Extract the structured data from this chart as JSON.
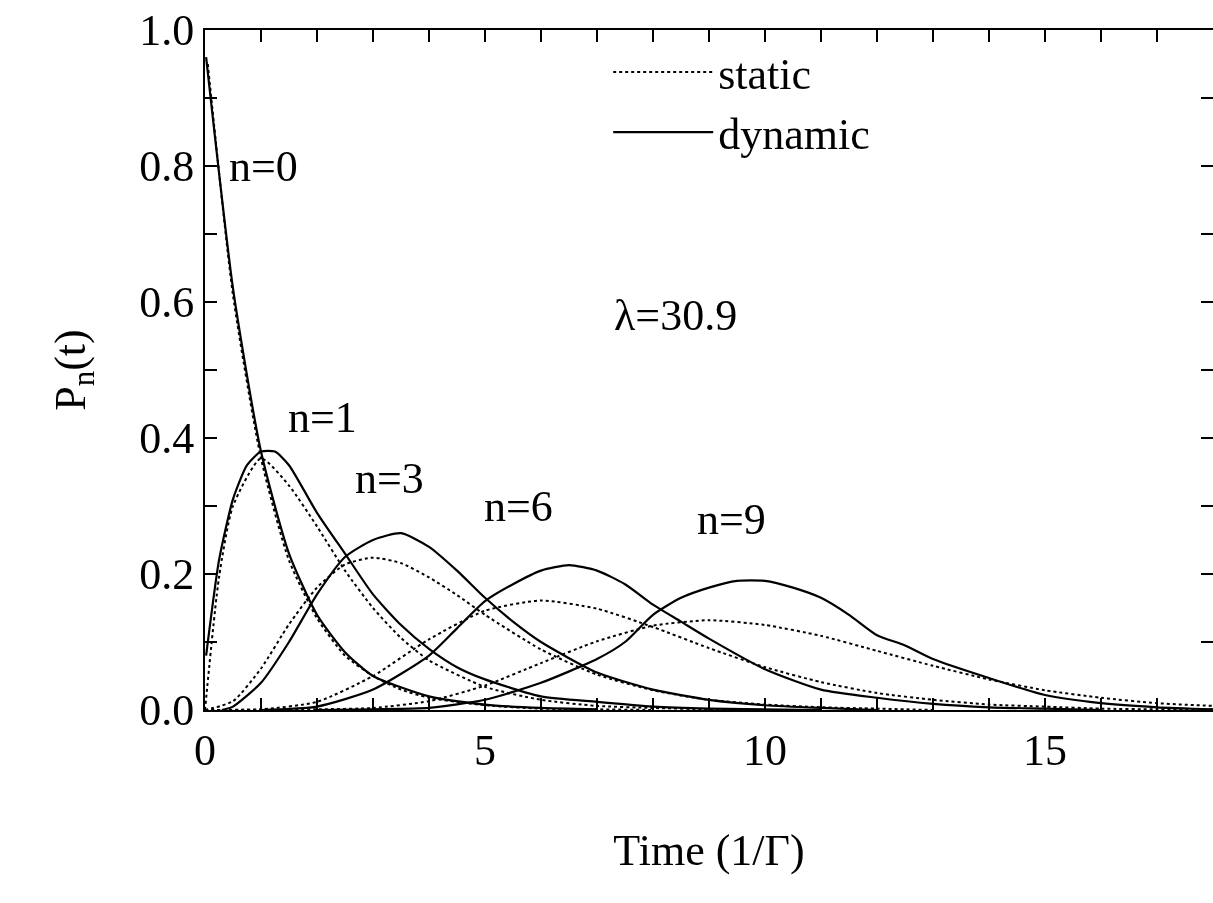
{
  "chart_data": {
    "type": "line",
    "xlabel": "Time (1/Γ)",
    "ylabel": "P$_{n}$(t)",
    "xlim": [
      0,
      18
    ],
    "ylim": [
      0,
      1
    ],
    "xticks": [
      0,
      {
        "value": 1,
        "label": null
      },
      {
        "value": 2,
        "label": null
      },
      {
        "value": 3,
        "label": null
      },
      {
        "value": 4,
        "label": null
      },
      5,
      {
        "value": 6,
        "label": null
      },
      {
        "value": 7,
        "label": null
      },
      {
        "value": 8,
        "label": null
      },
      {
        "value": 9,
        "label": null
      },
      10,
      {
        "value": 11,
        "label": null
      },
      {
        "value": 12,
        "label": null
      },
      {
        "value": 13,
        "label": null
      },
      {
        "value": 14,
        "label": null
      },
      15,
      {
        "value": 16,
        "label": null
      },
      {
        "value": 17,
        "label": null
      }
    ],
    "yticks": [
      {
        "value": 0,
        "label": "0.0"
      },
      {
        "value": 0.1,
        "label": null
      },
      0.2,
      {
        "value": 0.3,
        "label": null
      },
      0.4,
      {
        "value": 0.5,
        "label": null
      },
      0.6,
      {
        "value": 0.7,
        "label": null
      },
      0.8,
      {
        "value": 0.9,
        "label": null
      },
      {
        "value": 1,
        "label": "1.0"
      }
    ],
    "grid": false,
    "legend": "top",
    "marker": "none",
    "annotations": [
      "n=0",
      "n=1",
      "n=3",
      "n=6",
      "n=9",
      "λ=30.9"
    ],
    "series": [
      {
        "name": "static",
        "color": "#000000",
        "line_style": "dotted",
        "x": [
          0.05,
          0.5,
          1,
          1.5,
          2,
          2.5,
          3,
          3.5,
          4,
          5,
          6,
          7,
          8
        ],
        "values": [
          0.95,
          0.61,
          0.37,
          0.22,
          0.135,
          0.08,
          0.05,
          0.03,
          0.018,
          0.007,
          0.002,
          0.001,
          0
        ]
      },
      {
        "color": "#000000",
        "line_style": "dotted",
        "x": [
          0,
          0.25,
          0.5,
          1,
          1.5,
          2,
          2.5,
          3,
          3.5,
          4,
          5,
          6,
          7,
          8,
          9,
          10
        ],
        "values": [
          0,
          0.195,
          0.3,
          0.37,
          0.33,
          0.27,
          0.205,
          0.15,
          0.106,
          0.073,
          0.034,
          0.015,
          0.006,
          0.003,
          0.001,
          0
        ]
      },
      {
        "color": "#000000",
        "line_style": "dotted",
        "x": [
          0,
          0.5,
          1,
          1.5,
          2,
          2.5,
          3,
          3.5,
          4,
          4.5,
          5,
          6,
          7,
          8,
          9,
          10,
          11,
          12,
          13
        ],
        "values": [
          0,
          0.013,
          0.061,
          0.126,
          0.18,
          0.214,
          0.224,
          0.216,
          0.195,
          0.169,
          0.14,
          0.089,
          0.052,
          0.029,
          0.015,
          0.008,
          0.004,
          0.002,
          0
        ]
      },
      {
        "color": "#000000",
        "line_style": "dotted",
        "x": [
          0,
          1,
          2,
          3,
          4,
          5,
          6,
          7,
          8,
          9,
          10,
          11,
          12,
          13,
          14,
          15,
          16,
          17,
          18
        ],
        "values": [
          0,
          0.001,
          0.012,
          0.05,
          0.104,
          0.146,
          0.161,
          0.149,
          0.122,
          0.091,
          0.063,
          0.041,
          0.025,
          0.015,
          0.008,
          0.005,
          0.002,
          0.001,
          0.001
        ]
      },
      {
        "color": "#000000",
        "line_style": "dotted",
        "x": [
          0,
          2,
          3,
          4,
          5,
          6,
          7,
          8,
          9,
          10,
          11,
          12,
          13,
          14,
          15,
          16,
          17,
          18
        ],
        "values": [
          0,
          0.001,
          0.003,
          0.013,
          0.036,
          0.069,
          0.101,
          0.124,
          0.132,
          0.125,
          0.109,
          0.087,
          0.065,
          0.045,
          0.029,
          0.018,
          0.01,
          0.006
        ]
      },
      {
        "name": "dynamic",
        "color": "#000000",
        "line_style": "solid",
        "x": [
          0.02,
          0.5,
          1,
          1.5,
          2,
          2.5,
          3,
          4,
          5,
          6,
          7
        ],
        "values": [
          0.96,
          0.62,
          0.38,
          0.23,
          0.14,
          0.085,
          0.05,
          0.02,
          0.008,
          0.003,
          0.001
        ]
      },
      {
        "color": "#000000",
        "line_style": "solid",
        "x": [
          0.02,
          0.25,
          0.5,
          0.75,
          1,
          1.25,
          1.5,
          2,
          2.5,
          3,
          3.5,
          4,
          4.5,
          5,
          6,
          7,
          8,
          9,
          11
        ],
        "values": [
          0.08,
          0.22,
          0.31,
          0.36,
          0.38,
          0.38,
          0.36,
          0.29,
          0.23,
          0.17,
          0.125,
          0.09,
          0.063,
          0.045,
          0.02,
          0.012,
          0.005,
          0.002,
          0
        ]
      },
      {
        "color": "#000000",
        "line_style": "solid",
        "x": [
          0.3,
          0.5,
          1,
          1.5,
          2,
          2.5,
          3,
          3.5,
          4,
          4.5,
          5,
          5.5,
          6,
          7,
          8,
          9,
          10,
          11,
          12
        ],
        "values": [
          0,
          0.005,
          0.04,
          0.1,
          0.17,
          0.225,
          0.25,
          0.26,
          0.24,
          0.205,
          0.165,
          0.13,
          0.1,
          0.055,
          0.03,
          0.015,
          0.007,
          0.003,
          0
        ]
      },
      {
        "color": "#000000",
        "line_style": "solid",
        "x": [
          1,
          2,
          3,
          4,
          4.5,
          5,
          5.5,
          6,
          6.5,
          7,
          7.5,
          8,
          8.5,
          9,
          10,
          11,
          12,
          13,
          14,
          15,
          16
        ],
        "values": [
          0,
          0.005,
          0.03,
          0.08,
          0.12,
          0.16,
          0.185,
          0.205,
          0.213,
          0.205,
          0.185,
          0.155,
          0.13,
          0.105,
          0.06,
          0.03,
          0.018,
          0.009,
          0.004,
          0.002,
          0
        ]
      },
      {
        "color": "#000000",
        "line_style": "solid",
        "x": [
          2,
          3,
          4,
          5,
          6,
          7,
          7.5,
          8,
          8.5,
          9,
          9.5,
          10,
          10.5,
          11,
          11.5,
          12,
          12.5,
          13,
          14,
          15,
          16,
          17,
          18
        ],
        "values": [
          0,
          0.001,
          0.003,
          0.015,
          0.04,
          0.075,
          0.1,
          0.14,
          0.165,
          0.18,
          0.19,
          0.19,
          0.18,
          0.165,
          0.14,
          0.11,
          0.095,
          0.075,
          0.047,
          0.022,
          0.01,
          0.004,
          0.001
        ]
      }
    ]
  }
}
